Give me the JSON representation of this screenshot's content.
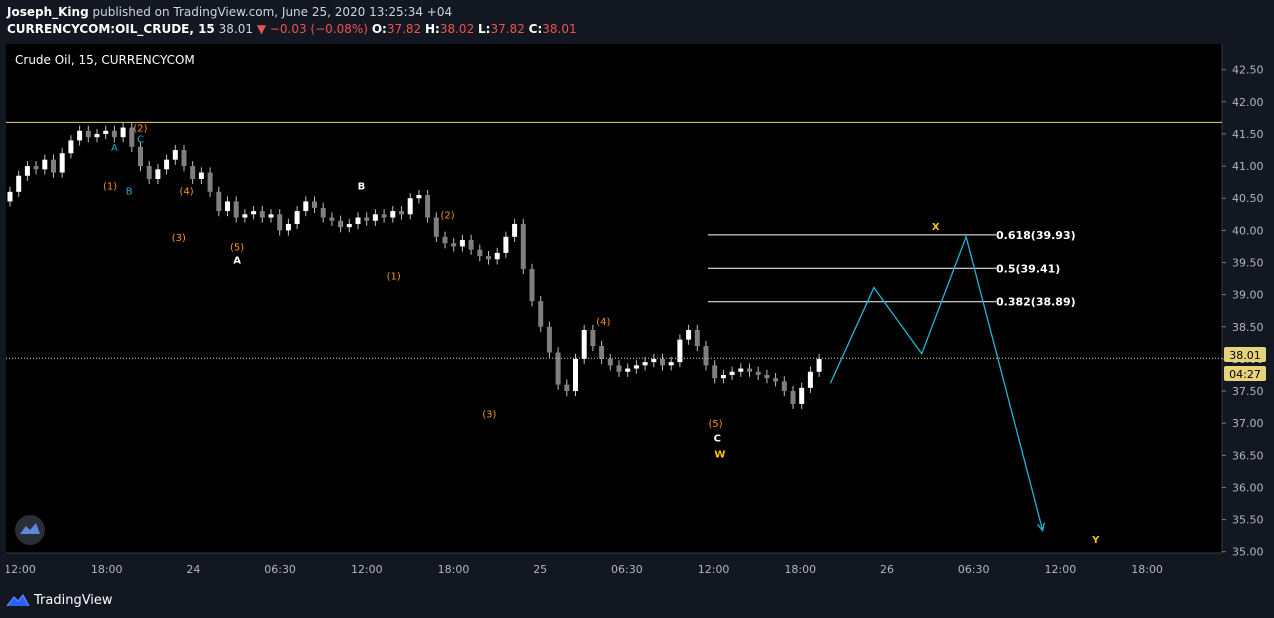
{
  "header": {
    "author": "Joseph_King",
    "published_text": " published on TradingView.com, June 25, 2020 13:25:34 +04",
    "symbol": "CURRENCYCOM:OIL_CRUDE, 15",
    "last_price": "38.01",
    "change": "▼ −0.03 (−0.08%)",
    "o_label": "O:",
    "o_value": "37.82",
    "h_label": "H:",
    "h_value": "38.02",
    "l_label": "L:",
    "l_value": "37.82",
    "c_label": "C:",
    "c_value": "38.01"
  },
  "chart": {
    "legend_title": "Crude Oil, 15, CURRENCYCOM",
    "price_badge": "38.01",
    "time_badge": "04:27",
    "colors": {
      "background": "#000000",
      "candle": "#ffffff",
      "projection": "#22b5d3",
      "fib": "#ffffff",
      "price_line": "#e6d37a",
      "wave_orange": "#f7931a",
      "wave_cyan": "#26a6d1",
      "wave_yellow": "#f5c518"
    }
  },
  "chart_data": {
    "type": "candlestick",
    "ylim": [
      34.98,
      42.9
    ],
    "y_ticks": [
      "42.50",
      "42.00",
      "41.50",
      "41.00",
      "40.50",
      "40.00",
      "39.50",
      "39.00",
      "38.50",
      "38.00",
      "37.50",
      "37.00",
      "36.50",
      "36.00",
      "35.50",
      "35.00"
    ],
    "x_ticks": [
      "12:00",
      "18:00",
      "24",
      "06:30",
      "12:00",
      "18:00",
      "25",
      "06:30",
      "12:00",
      "18:00",
      "26",
      "06:30",
      "12:00",
      "18:00"
    ],
    "close_series": [
      40.6,
      40.85,
      41.0,
      40.95,
      41.1,
      40.9,
      41.2,
      41.4,
      41.55,
      41.45,
      41.5,
      41.55,
      41.45,
      41.6,
      41.3,
      41.0,
      40.8,
      40.95,
      41.1,
      41.25,
      41.0,
      40.8,
      40.9,
      40.6,
      40.3,
      40.45,
      40.2,
      40.25,
      40.3,
      40.2,
      40.25,
      40.0,
      40.1,
      40.3,
      40.45,
      40.35,
      40.2,
      40.15,
      40.05,
      40.1,
      40.2,
      40.15,
      40.25,
      40.2,
      40.3,
      40.25,
      40.5,
      40.55,
      40.2,
      39.9,
      39.8,
      39.75,
      39.85,
      39.7,
      39.6,
      39.55,
      39.65,
      39.9,
      40.1,
      39.4,
      38.9,
      38.5,
      38.1,
      37.6,
      37.5,
      38.0,
      38.45,
      38.2,
      38.0,
      37.9,
      37.8,
      37.85,
      37.9,
      37.95,
      38.0,
      37.9,
      37.95,
      38.3,
      38.45,
      38.2,
      37.9,
      37.7,
      37.75,
      37.8,
      37.85,
      37.8,
      37.75,
      37.7,
      37.65,
      37.5,
      37.3,
      37.55,
      37.8,
      38.0
    ],
    "fib_levels": [
      {
        "label": "0.618(39.93)",
        "value": 39.93
      },
      {
        "label": "0.5(39.41)",
        "value": 39.41
      },
      {
        "label": "0.382(38.89)",
        "value": 38.89
      }
    ],
    "resistance_level": 41.68,
    "current_price": 38.01,
    "projection_path": [
      {
        "x_index": 94.3,
        "y": 37.62
      },
      {
        "x_index": 99.3,
        "y": 39.11
      },
      {
        "x_index": 104.8,
        "y": 38.08
      },
      {
        "x_index": 109.9,
        "y": 39.9
      },
      {
        "x_index": 118.7,
        "y": 35.33
      }
    ],
    "wave_labels": [
      {
        "text": "A",
        "x_index": 12,
        "y": 41.3,
        "color": "cyan"
      },
      {
        "text": "(2)",
        "x_index": 15,
        "y": 41.6,
        "color": "orange"
      },
      {
        "text": "C",
        "x_index": 15,
        "y": 41.43,
        "color": "cyan"
      },
      {
        "text": "(1)",
        "x_index": 11.5,
        "y": 40.7,
        "color": "orange"
      },
      {
        "text": "B",
        "x_index": 13.7,
        "y": 40.62,
        "color": "cyan"
      },
      {
        "text": "(4)",
        "x_index": 20.3,
        "y": 40.62,
        "color": "orange"
      },
      {
        "text": "(3)",
        "x_index": 19.4,
        "y": 39.9,
        "color": "orange"
      },
      {
        "text": "(5)",
        "x_index": 26.1,
        "y": 39.75,
        "color": "orange"
      },
      {
        "text": "A",
        "x_index": 26.1,
        "y": 39.55,
        "color": "white"
      },
      {
        "text": "B",
        "x_index": 40.4,
        "y": 40.7,
        "color": "white"
      },
      {
        "text": "(2)",
        "x_index": 50.3,
        "y": 40.25,
        "color": "orange"
      },
      {
        "text": "(1)",
        "x_index": 44.1,
        "y": 39.3,
        "color": "orange"
      },
      {
        "text": "(4)",
        "x_index": 68.2,
        "y": 38.59,
        "color": "orange"
      },
      {
        "text": "(3)",
        "x_index": 55.1,
        "y": 37.15,
        "color": "orange"
      },
      {
        "text": "(5)",
        "x_index": 81.1,
        "y": 37.0,
        "color": "orange"
      },
      {
        "text": "C",
        "x_index": 81.3,
        "y": 36.78,
        "color": "white"
      },
      {
        "text": "W",
        "x_index": 81.6,
        "y": 36.53,
        "color": "yellow"
      },
      {
        "text": "X",
        "x_index": 106.4,
        "y": 40.07,
        "color": "yellow"
      },
      {
        "text": "Y",
        "x_index": 124.8,
        "y": 35.2,
        "color": "yellow"
      }
    ]
  },
  "footer": {
    "brand": "TradingView"
  }
}
